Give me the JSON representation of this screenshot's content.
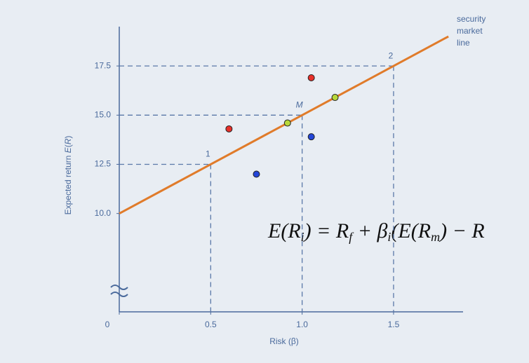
{
  "chart_data": {
    "type": "sml",
    "x_label": "Risk (β)",
    "y_label": [
      "Expected return ",
      "E",
      "(",
      "R",
      ")"
    ],
    "annotation": [
      "security",
      "market",
      "line"
    ],
    "formula": [
      {
        "text": "E(R"
      },
      {
        "text": "i",
        "sub": true
      },
      {
        "text": ") = R"
      },
      {
        "text": "f",
        "sub": true
      },
      {
        "text": " + β"
      },
      {
        "text": "i",
        "sub": true
      },
      {
        "text": "(E(R"
      },
      {
        "text": "m",
        "sub": true
      },
      {
        "text": ") − R"
      }
    ],
    "xlim": [
      0,
      1.88
    ],
    "ylim": [
      5,
      19.5
    ],
    "xticks": [
      0,
      0.5,
      {
        "value": 1,
        "label": "1.0"
      },
      1.5
    ],
    "yticks": [
      {
        "value": 10,
        "label": "10.0"
      },
      12.5,
      {
        "value": 15,
        "label": "15.0"
      },
      17.5
    ],
    "line": {
      "color": "#e07b2a",
      "x": [
        0,
        1.8
      ],
      "values": [
        10,
        19
      ]
    },
    "points": {
      "labels": [
        "1",
        "M",
        "2"
      ],
      "x": [
        0.5,
        1,
        1.5
      ],
      "values": [
        12.5,
        15,
        17.5
      ]
    },
    "series": [
      {
        "color": "#e8302a",
        "x": [
          0.6,
          1.05
        ],
        "values": [
          14.3,
          16.9
        ]
      },
      {
        "color": "#b8d83a",
        "x": [
          0.92,
          1.18
        ],
        "values": [
          14.6,
          15.9
        ]
      },
      {
        "color": "#2346d8",
        "x": [
          0.75,
          1.05
        ],
        "values": [
          12.0,
          13.9
        ]
      }
    ]
  }
}
